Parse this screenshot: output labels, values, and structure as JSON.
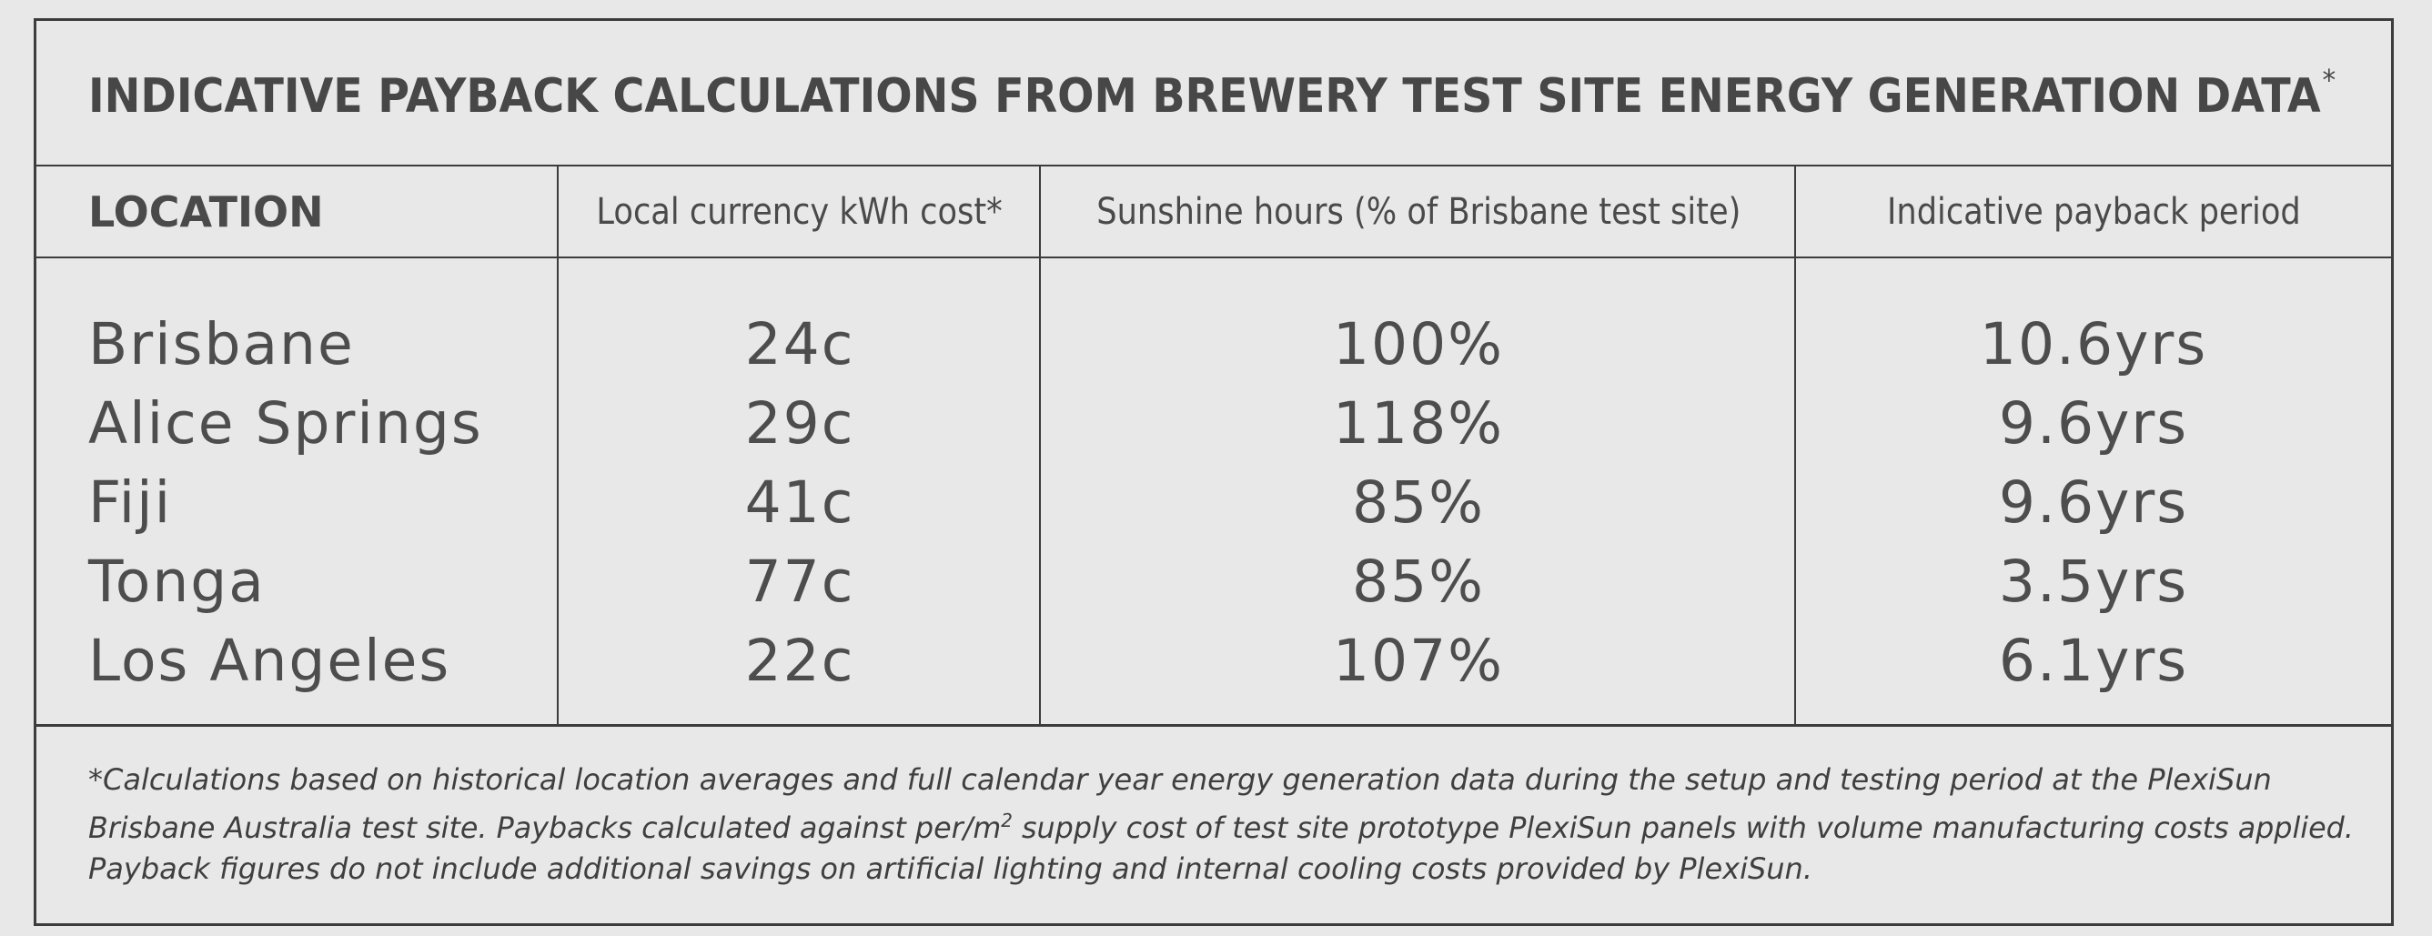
{
  "title": "INDICATIVE PAYBACK CALCULATIONS FROM BREWERY TEST SITE ENERGY GENERATION DATA",
  "title_mark": "*",
  "columns": {
    "location": "LOCATION",
    "kwh_cost": "Local currency kWh cost*",
    "sunshine": "Sunshine hours (% of Brisbane test site)",
    "payback": "Indicative payback period"
  },
  "rows": [
    {
      "location": "Brisbane",
      "kwh_cost": "24c",
      "sunshine": "100%",
      "payback": "10.6yrs"
    },
    {
      "location": "Alice Springs",
      "kwh_cost": "29c",
      "sunshine": "118%",
      "payback": "9.6yrs"
    },
    {
      "location": "Fiji",
      "kwh_cost": "41c",
      "sunshine": "85%",
      "payback": "9.6yrs"
    },
    {
      "location": "Tonga",
      "kwh_cost": "77c",
      "sunshine": "85%",
      "payback": "3.5yrs"
    },
    {
      "location": "Los Angeles",
      "kwh_cost": "22c",
      "sunshine": "107%",
      "payback": "6.1yrs"
    }
  ],
  "footnote": {
    "line1": "*Calculations based on historical location averages and full calendar year energy generation data during the setup and testing period at the PlexiSun",
    "line2_a": "Brisbane Australia test site. Paybacks calculated against per/m",
    "line2_sup": "2",
    "line2_b": " supply cost of test site prototype PlexiSun panels with volume manufacturing costs applied.",
    "line3": "Payback figures do not include additional savings on artificial lighting and internal cooling costs provided by PlexiSun."
  }
}
